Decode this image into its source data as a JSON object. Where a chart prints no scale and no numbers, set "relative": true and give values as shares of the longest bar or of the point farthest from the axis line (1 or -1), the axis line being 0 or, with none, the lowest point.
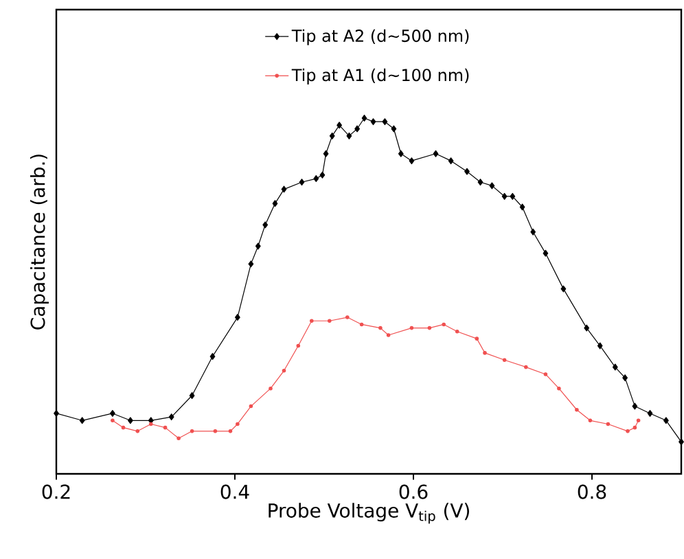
{
  "chart_data": {
    "type": "line",
    "relative": true,
    "xlabel": "Probe Voltage V$_{tip}$ (V)",
    "ylabel": "Capacitance (arb.)",
    "xlim": [
      0.2,
      0.9
    ],
    "xticks": [
      0.2,
      0.4,
      0.6,
      0.8
    ],
    "legend": "top",
    "grid": false,
    "line_style": "solid",
    "series": [
      {
        "name": "Tip at A2 (d~500 nm)",
        "color": "#000000",
        "marker": "diamond",
        "x": [
          0.2,
          0.229,
          0.263,
          0.283,
          0.306,
          0.329,
          0.352,
          0.375,
          0.403,
          0.418,
          0.426,
          0.434,
          0.445,
          0.455,
          0.475,
          0.491,
          0.498,
          0.502,
          0.509,
          0.517,
          0.528,
          0.537,
          0.545,
          0.555,
          0.568,
          0.578,
          0.586,
          0.598,
          0.625,
          0.642,
          0.66,
          0.675,
          0.688,
          0.702,
          0.711,
          0.722,
          0.734,
          0.748,
          0.768,
          0.794,
          0.809,
          0.826,
          0.837,
          0.848,
          0.865,
          0.883,
          0.9
        ],
        "values": [
          0.17,
          0.15,
          0.17,
          0.15,
          0.15,
          0.16,
          0.22,
          0.33,
          0.44,
          0.59,
          0.64,
          0.7,
          0.76,
          0.8,
          0.82,
          0.83,
          0.84,
          0.9,
          0.95,
          0.98,
          0.95,
          0.97,
          1.0,
          0.99,
          0.99,
          0.97,
          0.9,
          0.88,
          0.9,
          0.88,
          0.85,
          0.82,
          0.81,
          0.78,
          0.78,
          0.75,
          0.68,
          0.62,
          0.52,
          0.41,
          0.36,
          0.3,
          0.27,
          0.19,
          0.17,
          0.15,
          0.09
        ]
      },
      {
        "name": "Tip at A1 (d~100 nm)",
        "color": "#f05050",
        "marker": "circle",
        "x": [
          0.263,
          0.275,
          0.291,
          0.306,
          0.322,
          0.337,
          0.352,
          0.378,
          0.395,
          0.403,
          0.418,
          0.44,
          0.455,
          0.471,
          0.486,
          0.506,
          0.526,
          0.542,
          0.563,
          0.572,
          0.598,
          0.618,
          0.634,
          0.649,
          0.671,
          0.68,
          0.702,
          0.726,
          0.748,
          0.763,
          0.783,
          0.798,
          0.818,
          0.84,
          0.848,
          0.852
        ],
        "values": [
          0.15,
          0.13,
          0.12,
          0.14,
          0.13,
          0.1,
          0.12,
          0.12,
          0.12,
          0.14,
          0.19,
          0.24,
          0.29,
          0.36,
          0.43,
          0.43,
          0.44,
          0.42,
          0.41,
          0.39,
          0.41,
          0.41,
          0.42,
          0.4,
          0.38,
          0.34,
          0.32,
          0.3,
          0.28,
          0.24,
          0.18,
          0.15,
          0.14,
          0.12,
          0.13,
          0.15
        ]
      }
    ]
  }
}
